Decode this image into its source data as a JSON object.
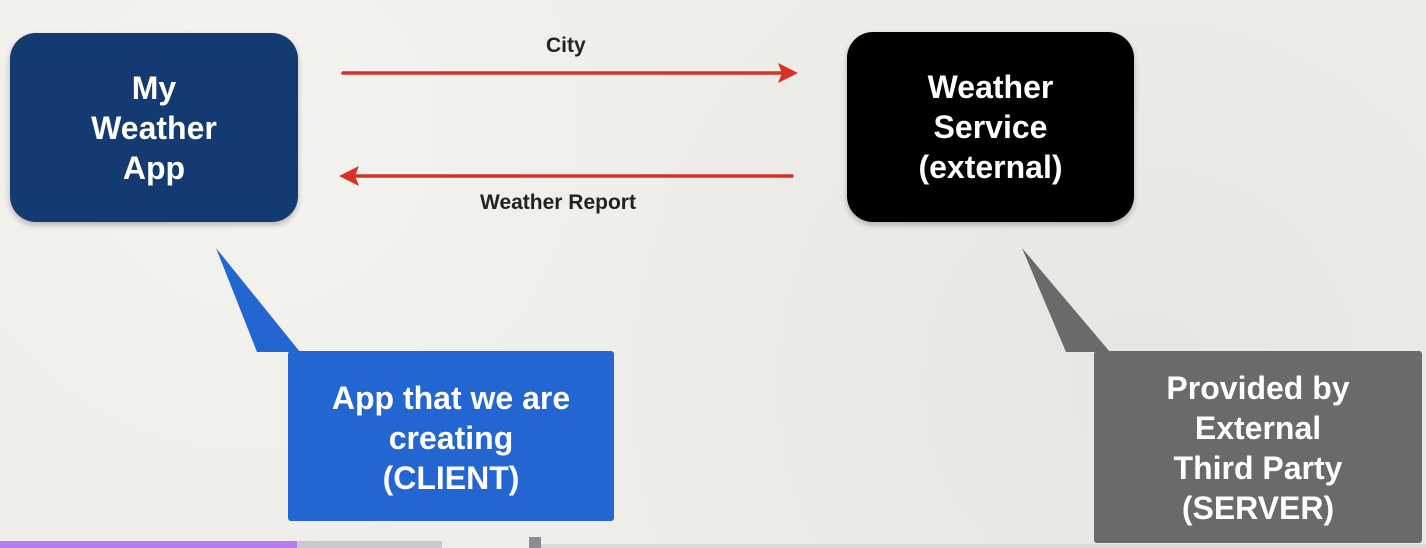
{
  "diagram": {
    "client_app": {
      "label": "My\nWeather\nApp",
      "color": "#143a72"
    },
    "weather_service": {
      "label": "Weather\nService\n(external)",
      "color": "#000000"
    },
    "request_arrow": {
      "label": "City",
      "color": "#d93025",
      "direction": "client-to-service"
    },
    "response_arrow": {
      "label": "Weather Report",
      "color": "#d93025",
      "direction": "service-to-client"
    },
    "client_callout": {
      "text": "App that we are\ncreating\n(CLIENT)",
      "color": "#2366d1"
    },
    "server_callout": {
      "text": "Provided by\nExternal\nThird Party\n(SERVER)",
      "color": "#6a6a6a"
    }
  },
  "player_bar": {
    "progress_color": "#b57cf0"
  }
}
